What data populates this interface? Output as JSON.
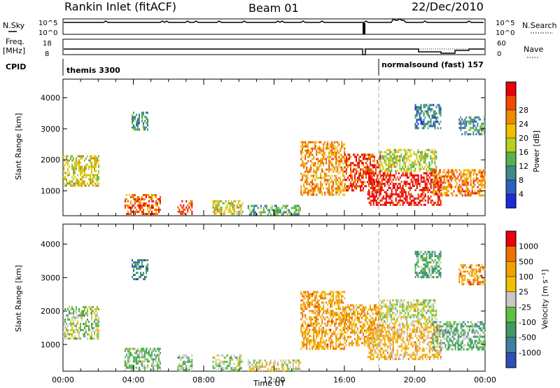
{
  "header": {
    "title": "Rankin Inlet (fitACF)",
    "beam": "Beam 01",
    "date": "22/Dec/2010"
  },
  "top_panels": {
    "nsky_label": "N.Sky",
    "nsky_ticks": [
      "10^5",
      "10^0"
    ],
    "nsearch_label": "N.Search",
    "nsearch_ticks": [
      "10^5",
      "10^0"
    ],
    "freq_label": "Freq.",
    "freq_unit": "[MHz]",
    "freq_ticks": [
      "18",
      "8"
    ],
    "nave_label": "Nave",
    "nave_ticks": [
      "60",
      "0"
    ],
    "cpid_label": "CPID",
    "modes": [
      {
        "name": "themis 3300",
        "start_hour": 0
      },
      {
        "name": "normalsound (fast) 157",
        "start_hour": 18
      }
    ]
  },
  "chart_data": [
    {
      "type": "heatmap",
      "name": "power",
      "ylabel": "Slant Range [km]",
      "xlabel": "",
      "x_ticks": [
        "00:00",
        "04:00",
        "08:00",
        "12:00",
        "16:00",
        "20:00",
        "00:00"
      ],
      "y_ticks": [
        "1000",
        "2000",
        "3000",
        "4000"
      ],
      "xlim_hours": [
        0,
        24
      ],
      "ylim_km": [
        200,
        4600
      ],
      "colorbar": {
        "label": "Power [dB]",
        "ticks": [
          "4",
          "8",
          "12",
          "16",
          "20",
          "24",
          "28"
        ],
        "colors": [
          "#1e2bd8",
          "#2f5fbf",
          "#3c8c8c",
          "#5ab04a",
          "#b8d020",
          "#f0c000",
          "#f08a00",
          "#f04a00",
          "#e8000a"
        ]
      },
      "regions": [
        {
          "x": [
            0.0,
            2.0
          ],
          "y": [
            1150,
            2150
          ],
          "level": 0.55
        },
        {
          "x": [
            3.9,
            4.8
          ],
          "y": [
            2950,
            3550
          ],
          "level": 0.3
        },
        {
          "x": [
            3.5,
            5.5
          ],
          "y": [
            230,
            900
          ],
          "level": 0.8
        },
        {
          "x": [
            6.5,
            7.3
          ],
          "y": [
            230,
            700
          ],
          "level": 0.85
        },
        {
          "x": [
            8.5,
            10.2
          ],
          "y": [
            230,
            700
          ],
          "level": 0.55
        },
        {
          "x": [
            10.5,
            13.5
          ],
          "y": [
            230,
            550
          ],
          "level": 0.35
        },
        {
          "x": [
            13.5,
            16.0
          ],
          "y": [
            900,
            2600
          ],
          "level": 0.7
        },
        {
          "x": [
            16.0,
            18.0
          ],
          "y": [
            1000,
            2200
          ],
          "level": 0.85
        },
        {
          "x": [
            17.3,
            21.5
          ],
          "y": [
            550,
            1600
          ],
          "level": 0.95
        },
        {
          "x": [
            18.0,
            21.2
          ],
          "y": [
            1650,
            2350
          ],
          "level": 0.5
        },
        {
          "x": [
            21.0,
            24.0
          ],
          "y": [
            850,
            1700
          ],
          "level": 0.75
        },
        {
          "x": [
            22.5,
            24.0
          ],
          "y": [
            2800,
            3400
          ],
          "level": 0.3
        },
        {
          "x": [
            20.0,
            21.5
          ],
          "y": [
            3000,
            3800
          ],
          "level": 0.25
        }
      ]
    },
    {
      "type": "heatmap",
      "name": "velocity",
      "ylabel": "Slant Range [km]",
      "xlabel": "Time UT",
      "x_ticks": [
        "00:00",
        "04:00",
        "08:00",
        "12:00",
        "16:00",
        "20:00",
        "00:00"
      ],
      "y_ticks": [
        "1000",
        "2000",
        "3000",
        "4000"
      ],
      "xlim_hours": [
        0,
        24
      ],
      "ylim_km": [
        200,
        4600
      ],
      "colorbar": {
        "label": "Velocity [m s⁻¹]",
        "ticks": [
          "1000",
          "500",
          "100",
          "25",
          "-25",
          "-100",
          "-500",
          "-1000"
        ],
        "colors": [
          "#2f4fb8",
          "#3f7fa0",
          "#3f9a60",
          "#60c040",
          "#c8c8c8",
          "#f0c000",
          "#f0a000",
          "#f07000",
          "#e8000a"
        ]
      },
      "regions": [
        {
          "x": [
            0.0,
            2.0
          ],
          "y": [
            1150,
            2150
          ],
          "level": 0.45
        },
        {
          "x": [
            3.9,
            4.8
          ],
          "y": [
            2950,
            3550
          ],
          "level": 0.2
        },
        {
          "x": [
            3.5,
            5.5
          ],
          "y": [
            230,
            900
          ],
          "level": 0.4
        },
        {
          "x": [
            6.5,
            7.3
          ],
          "y": [
            230,
            700
          ],
          "level": 0.4
        },
        {
          "x": [
            8.5,
            10.2
          ],
          "y": [
            230,
            700
          ],
          "level": 0.45
        },
        {
          "x": [
            10.5,
            13.5
          ],
          "y": [
            230,
            550
          ],
          "level": 0.55
        },
        {
          "x": [
            13.5,
            16.0
          ],
          "y": [
            900,
            2600
          ],
          "level": 0.72
        },
        {
          "x": [
            16.0,
            18.0
          ],
          "y": [
            1000,
            2200
          ],
          "level": 0.7
        },
        {
          "x": [
            17.3,
            21.5
          ],
          "y": [
            550,
            1600
          ],
          "level": 0.65
        },
        {
          "x": [
            18.0,
            21.2
          ],
          "y": [
            1650,
            2350
          ],
          "level": 0.5
        },
        {
          "x": [
            21.0,
            24.0
          ],
          "y": [
            850,
            1700
          ],
          "level": 0.35
        },
        {
          "x": [
            22.5,
            24.0
          ],
          "y": [
            2800,
            3400
          ],
          "level": 0.75
        },
        {
          "x": [
            20.0,
            21.5
          ],
          "y": [
            3000,
            3800
          ],
          "level": 0.3
        }
      ]
    }
  ]
}
